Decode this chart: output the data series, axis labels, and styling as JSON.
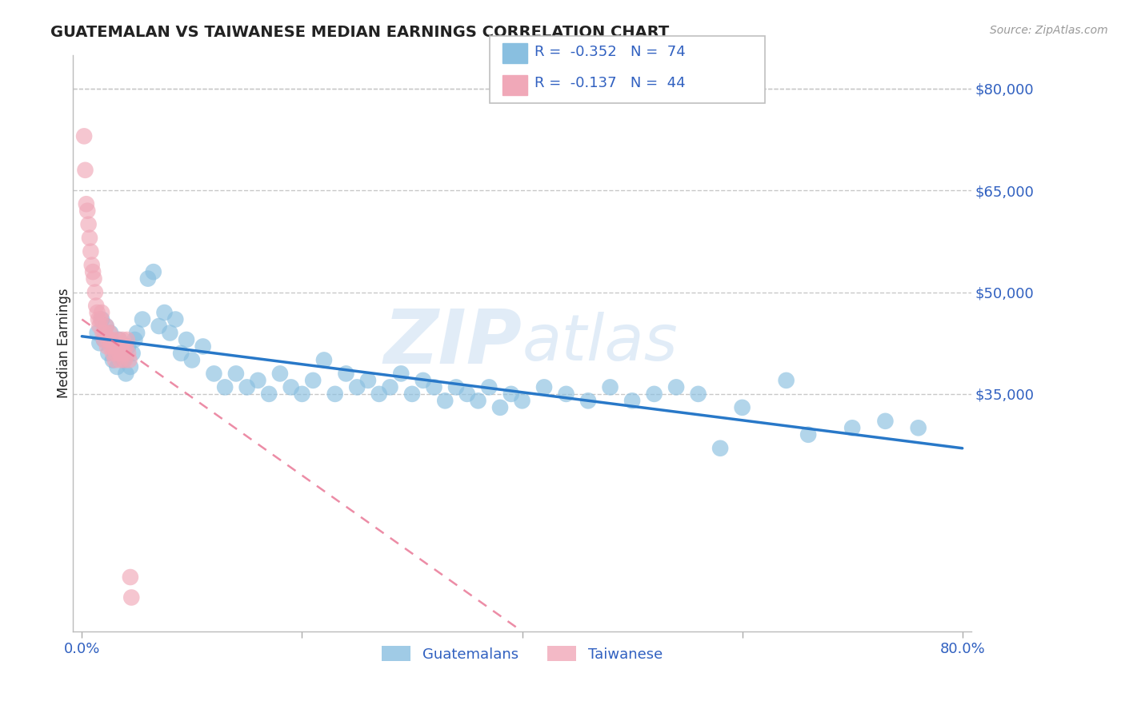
{
  "title": "GUATEMALAN VS TAIWANESE MEDIAN EARNINGS CORRELATION CHART",
  "source": "Source: ZipAtlas.com",
  "ylabel": "Median Earnings",
  "xlim": [
    -0.008,
    0.808
  ],
  "ylim": [
    0,
    85000
  ],
  "yticks": [
    35000,
    50000,
    65000,
    80000
  ],
  "ytick_labels": [
    "$35,000",
    "$50,000",
    "$65,000",
    "$80,000"
  ],
  "background_color": "#ffffff",
  "grid_color": "#c8c8c8",
  "blue_color": "#89bfe0",
  "pink_color": "#f0a8b8",
  "blue_line_color": "#2878c8",
  "pink_line_color": "#e87090",
  "label_color": "#3060c0",
  "dark_label": "#222222",
  "legend_label1": "Guatemalans",
  "legend_label2": "Taiwanese",
  "blue_line_x": [
    0.0,
    0.8
  ],
  "blue_line_y": [
    43500,
    27000
  ],
  "pink_line_x": [
    0.0,
    0.4
  ],
  "pink_line_y": [
    46000,
    0
  ],
  "guat_x": [
    0.014,
    0.016,
    0.018,
    0.02,
    0.022,
    0.024,
    0.026,
    0.028,
    0.03,
    0.032,
    0.034,
    0.036,
    0.038,
    0.04,
    0.042,
    0.044,
    0.046,
    0.048,
    0.05,
    0.055,
    0.06,
    0.065,
    0.07,
    0.075,
    0.08,
    0.085,
    0.09,
    0.095,
    0.1,
    0.11,
    0.12,
    0.13,
    0.14,
    0.15,
    0.16,
    0.17,
    0.18,
    0.19,
    0.2,
    0.21,
    0.22,
    0.23,
    0.24,
    0.25,
    0.26,
    0.27,
    0.28,
    0.29,
    0.3,
    0.31,
    0.32,
    0.33,
    0.34,
    0.35,
    0.36,
    0.37,
    0.38,
    0.39,
    0.4,
    0.42,
    0.44,
    0.46,
    0.48,
    0.5,
    0.52,
    0.54,
    0.56,
    0.58,
    0.6,
    0.64,
    0.66,
    0.7,
    0.73,
    0.76
  ],
  "guat_y": [
    44000,
    42500,
    46000,
    43000,
    45000,
    41000,
    44000,
    40000,
    42000,
    39000,
    43000,
    41000,
    40000,
    38000,
    42000,
    39000,
    41000,
    43000,
    44000,
    46000,
    52000,
    53000,
    45000,
    47000,
    44000,
    46000,
    41000,
    43000,
    40000,
    42000,
    38000,
    36000,
    38000,
    36000,
    37000,
    35000,
    38000,
    36000,
    35000,
    37000,
    40000,
    35000,
    38000,
    36000,
    37000,
    35000,
    36000,
    38000,
    35000,
    37000,
    36000,
    34000,
    36000,
    35000,
    34000,
    36000,
    33000,
    35000,
    34000,
    36000,
    35000,
    34000,
    36000,
    34000,
    35000,
    36000,
    35000,
    27000,
    33000,
    37000,
    29000,
    30000,
    31000,
    30000
  ],
  "taiw_x": [
    0.002,
    0.003,
    0.004,
    0.005,
    0.006,
    0.007,
    0.008,
    0.009,
    0.01,
    0.011,
    0.012,
    0.013,
    0.014,
    0.015,
    0.016,
    0.017,
    0.018,
    0.019,
    0.02,
    0.021,
    0.022,
    0.023,
    0.024,
    0.025,
    0.026,
    0.027,
    0.028,
    0.029,
    0.03,
    0.031,
    0.032,
    0.033,
    0.034,
    0.035,
    0.036,
    0.037,
    0.038,
    0.039,
    0.04,
    0.041,
    0.042,
    0.043,
    0.044,
    0.045
  ],
  "taiw_y": [
    73000,
    68000,
    63000,
    62000,
    60000,
    58000,
    56000,
    54000,
    53000,
    52000,
    50000,
    48000,
    47000,
    46000,
    45000,
    46000,
    47000,
    44000,
    43000,
    44000,
    45000,
    42000,
    43000,
    44000,
    42000,
    43000,
    41000,
    42000,
    40000,
    41000,
    42000,
    43000,
    41000,
    40000,
    42000,
    43000,
    41000,
    40000,
    42000,
    43000,
    41000,
    40000,
    8000,
    5000
  ]
}
